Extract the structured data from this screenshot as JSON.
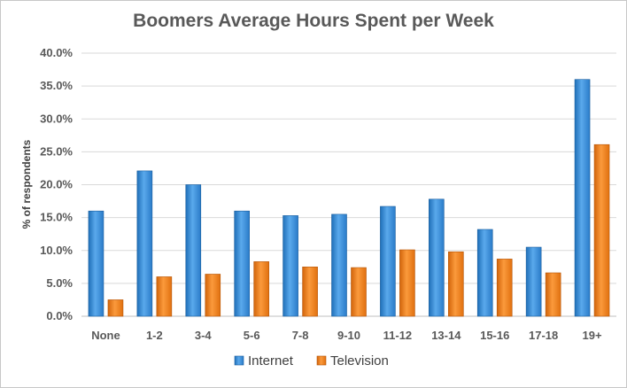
{
  "chart_data": {
    "type": "bar",
    "title": "Boomers Average Hours Spent per Week",
    "xlabel": "",
    "ylabel": "% of respondents",
    "categories": [
      "None",
      "1-2",
      "3-4",
      "5-6",
      "7-8",
      "9-10",
      "11-12",
      "13-14",
      "15-16",
      "17-18",
      "19+"
    ],
    "series": [
      {
        "name": "Internet",
        "color": "#3d8fd9",
        "values": [
          16.0,
          22.1,
          20.0,
          16.0,
          15.3,
          15.5,
          16.7,
          17.8,
          13.2,
          10.5,
          36.0
        ]
      },
      {
        "name": "Television",
        "color": "#f07d14",
        "values": [
          2.5,
          6.0,
          6.4,
          8.3,
          7.5,
          7.4,
          10.1,
          9.8,
          8.7,
          6.6,
          26.1
        ]
      }
    ],
    "ylim": [
      0,
      40
    ],
    "yticks": [
      "0.0%",
      "5.0%",
      "10.0%",
      "15.0%",
      "20.0%",
      "25.0%",
      "30.0%",
      "35.0%",
      "40.0%"
    ],
    "grid": true,
    "legend": "bottom"
  }
}
